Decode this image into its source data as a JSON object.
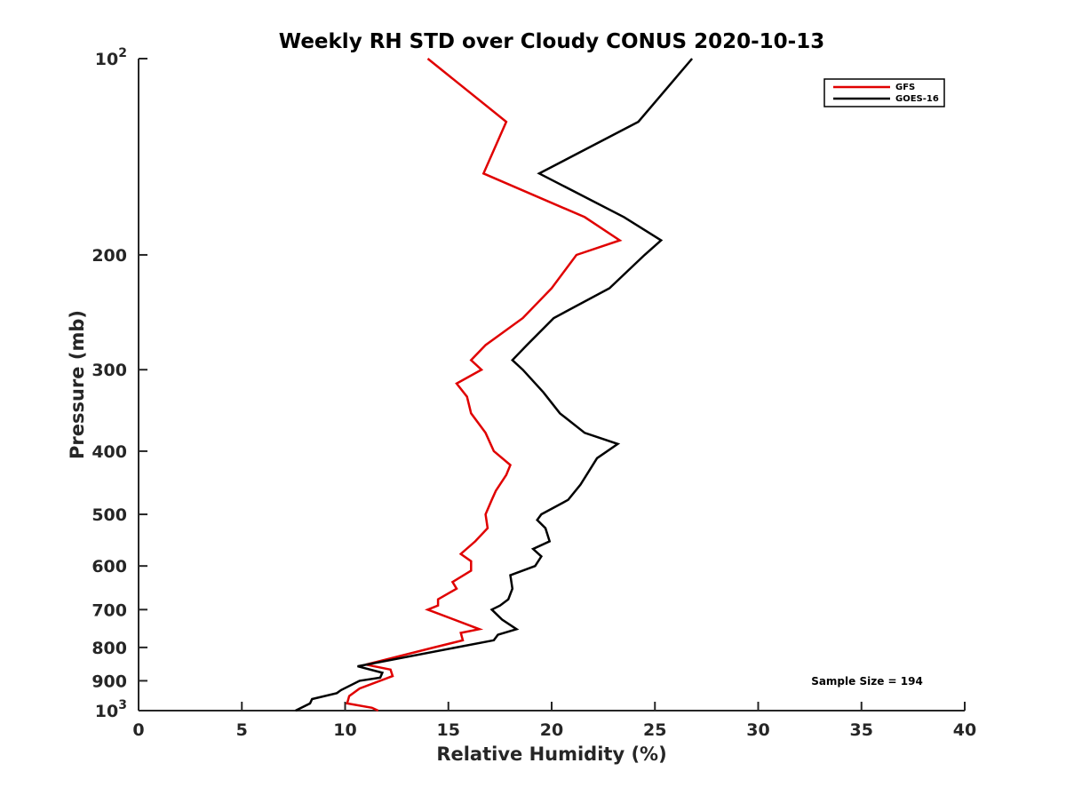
{
  "chart_data": {
    "type": "line",
    "title": "Weekly RH STD over Cloudy CONUS 2020-10-13",
    "xlabel": "Relative Humidity (%)",
    "ylabel": "Pressure (mb)",
    "xlim": [
      0,
      40
    ],
    "ylim": [
      100,
      1000
    ],
    "y_scale": "log",
    "y_reversed": true,
    "grid": false,
    "legend_position": "top-right",
    "x_ticks": [
      0,
      5,
      10,
      15,
      20,
      25,
      30,
      35,
      40
    ],
    "y_ticks": [
      100,
      200,
      300,
      400,
      500,
      600,
      700,
      800,
      900,
      1000
    ],
    "y_tick_labels": [
      {
        "base": "10",
        "exp": "2"
      },
      {
        "base": "200",
        "exp": ""
      },
      {
        "base": "300",
        "exp": ""
      },
      {
        "base": "400",
        "exp": ""
      },
      {
        "base": "500",
        "exp": ""
      },
      {
        "base": "600",
        "exp": ""
      },
      {
        "base": "700",
        "exp": ""
      },
      {
        "base": "800",
        "exp": ""
      },
      {
        "base": "900",
        "exp": ""
      },
      {
        "base": "10",
        "exp": "3"
      }
    ],
    "annotation": "Sample Size = 194",
    "series": [
      {
        "name": "GFS",
        "color": "#e00000",
        "points": [
          [
            14.0,
            100
          ],
          [
            17.8,
            125
          ],
          [
            16.7,
            150
          ],
          [
            21.6,
            175
          ],
          [
            23.3,
            190
          ],
          [
            21.2,
            200
          ],
          [
            20.0,
            225
          ],
          [
            18.6,
            250
          ],
          [
            16.8,
            275
          ],
          [
            16.1,
            290
          ],
          [
            16.6,
            300
          ],
          [
            15.4,
            315
          ],
          [
            15.9,
            330
          ],
          [
            16.1,
            350
          ],
          [
            16.8,
            375
          ],
          [
            17.2,
            400
          ],
          [
            18.0,
            420
          ],
          [
            17.8,
            435
          ],
          [
            17.3,
            460
          ],
          [
            17.1,
            475
          ],
          [
            16.8,
            500
          ],
          [
            16.9,
            525
          ],
          [
            16.3,
            550
          ],
          [
            15.6,
            575
          ],
          [
            16.1,
            590
          ],
          [
            16.1,
            610
          ],
          [
            15.2,
            635
          ],
          [
            15.4,
            650
          ],
          [
            14.5,
            675
          ],
          [
            14.5,
            690
          ],
          [
            14.0,
            700
          ],
          [
            16.5,
            750
          ],
          [
            15.6,
            760
          ],
          [
            15.7,
            780
          ],
          [
            14.3,
            800
          ],
          [
            11.0,
            850
          ],
          [
            12.2,
            865
          ],
          [
            12.3,
            885
          ],
          [
            10.7,
            925
          ],
          [
            10.2,
            950
          ],
          [
            10.1,
            975
          ],
          [
            11.3,
            990
          ],
          [
            11.6,
            1000
          ]
        ]
      },
      {
        "name": "GOES-16",
        "color": "#000000",
        "points": [
          [
            26.8,
            100
          ],
          [
            24.2,
            125
          ],
          [
            19.4,
            150
          ],
          [
            23.5,
            175
          ],
          [
            25.3,
            190
          ],
          [
            24.5,
            200
          ],
          [
            22.8,
            225
          ],
          [
            20.1,
            250
          ],
          [
            18.8,
            275
          ],
          [
            18.1,
            290
          ],
          [
            18.6,
            300
          ],
          [
            19.6,
            325
          ],
          [
            20.4,
            350
          ],
          [
            21.6,
            375
          ],
          [
            23.2,
            390
          ],
          [
            22.2,
            410
          ],
          [
            21.4,
            450
          ],
          [
            20.8,
            475
          ],
          [
            19.5,
            500
          ],
          [
            19.3,
            510
          ],
          [
            19.7,
            525
          ],
          [
            19.9,
            550
          ],
          [
            19.1,
            565
          ],
          [
            19.5,
            580
          ],
          [
            19.2,
            600
          ],
          [
            18.0,
            620
          ],
          [
            18.1,
            650
          ],
          [
            17.9,
            675
          ],
          [
            17.5,
            690
          ],
          [
            17.1,
            700
          ],
          [
            17.6,
            725
          ],
          [
            18.3,
            750
          ],
          [
            17.4,
            765
          ],
          [
            17.2,
            780
          ],
          [
            10.6,
            855
          ],
          [
            11.8,
            875
          ],
          [
            11.7,
            890
          ],
          [
            10.7,
            900
          ],
          [
            9.8,
            930
          ],
          [
            9.6,
            940
          ],
          [
            8.4,
            960
          ],
          [
            8.3,
            975
          ],
          [
            7.6,
            1000
          ]
        ]
      }
    ]
  }
}
